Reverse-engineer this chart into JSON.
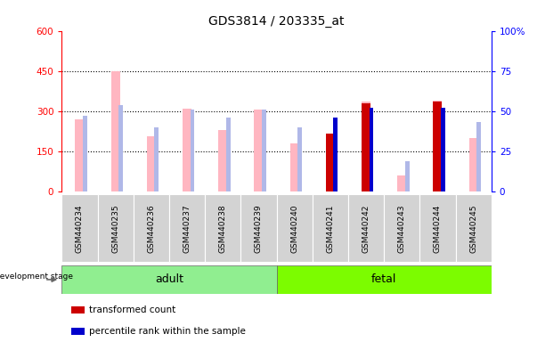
{
  "title": "GDS3814 / 203335_at",
  "samples": [
    "GSM440234",
    "GSM440235",
    "GSM440236",
    "GSM440237",
    "GSM440238",
    "GSM440239",
    "GSM440240",
    "GSM440241",
    "GSM440242",
    "GSM440243",
    "GSM440244",
    "GSM440245"
  ],
  "absent_value": [
    270,
    450,
    205,
    310,
    230,
    305,
    180,
    210,
    335,
    60,
    340,
    200
  ],
  "absent_rank_pct": [
    47,
    54,
    40,
    51,
    46,
    51,
    40,
    46,
    52,
    19,
    52,
    43
  ],
  "present_value": [
    0,
    0,
    0,
    0,
    0,
    0,
    0,
    215,
    330,
    0,
    335,
    0
  ],
  "present_rank_pct": [
    0,
    0,
    0,
    0,
    0,
    0,
    0,
    46,
    52,
    0,
    52,
    0
  ],
  "adult_count": 6,
  "fetal_count": 6,
  "ylim_left": [
    0,
    600
  ],
  "ylim_right": [
    0,
    100
  ],
  "yticks_left": [
    0,
    150,
    300,
    450,
    600
  ],
  "yticks_right": [
    0,
    25,
    50,
    75,
    100
  ],
  "color_absent_value": "#FFB6C1",
  "color_absent_rank": "#B0B8E8",
  "color_present_value": "#CC0000",
  "color_present_rank": "#0000CC",
  "color_adult_bg": "#90EE90",
  "color_fetal_bg": "#7CFC00",
  "grid_color": "black",
  "grid_yticks": [
    150,
    300,
    450
  ]
}
